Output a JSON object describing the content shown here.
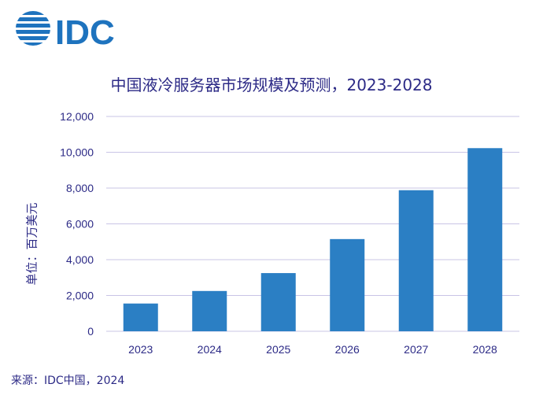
{
  "logo": {
    "text": "IDC"
  },
  "chart_data": {
    "type": "bar",
    "title": "中国液冷服务器市场规模及预测，2023-2028",
    "ylabel": "单位：百万美元",
    "xlabel": "",
    "categories": [
      "2023",
      "2024",
      "2025",
      "2026",
      "2027",
      "2028"
    ],
    "values": [
      1550,
      2250,
      3250,
      5150,
      7880,
      10230
    ],
    "ylim": [
      0,
      12000
    ],
    "yticks": [
      0,
      2000,
      4000,
      6000,
      8000,
      10000,
      12000
    ],
    "ytick_labels": [
      "0",
      "2,000",
      "4,000",
      "6,000",
      "8,000",
      "10,000",
      "12,000"
    ],
    "grid": true,
    "bar_color": "#2b7fc4",
    "grid_color": "#c9c4e6"
  },
  "source": "来源：IDC中国，2024",
  "colors": {
    "text": "#2c2a86",
    "logo_blue": "#1e73be"
  }
}
